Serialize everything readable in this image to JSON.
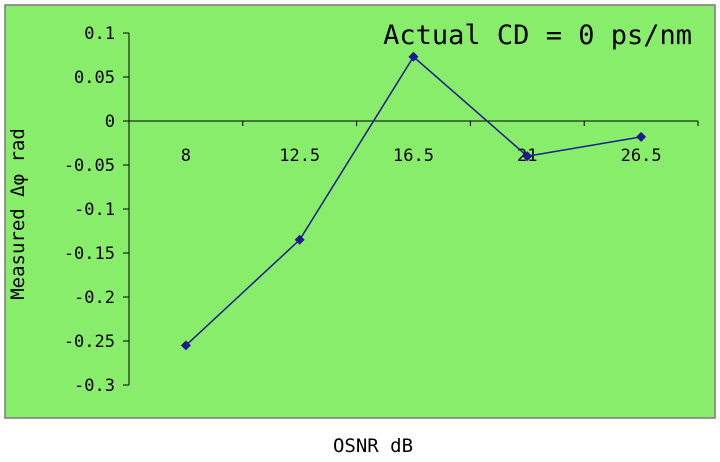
{
  "chart_data": {
    "type": "line",
    "title": "Actual CD = 0 ps/nm",
    "xlabel": "OSNR  dB",
    "ylabel": "Measured  Δφ   rad",
    "categories": [
      "8",
      "12.5",
      "16.5",
      "21",
      "26.5"
    ],
    "series": [
      {
        "values": [
          -0.255,
          -0.135,
          0.073,
          -0.04,
          -0.018
        ],
        "color": "#1c1c8c",
        "marker": "diamond"
      }
    ],
    "yticks": [
      "0.1",
      "0.05",
      "0",
      "-0.05",
      "-0.1",
      "-0.15",
      "-0.2",
      "-0.25",
      "-0.3"
    ],
    "ylim": [
      -0.3,
      0.1
    ],
    "grid": false,
    "legend": "none",
    "colors": {
      "plot_background": "#88ed6b",
      "frame": "#7a7a7a"
    }
  }
}
